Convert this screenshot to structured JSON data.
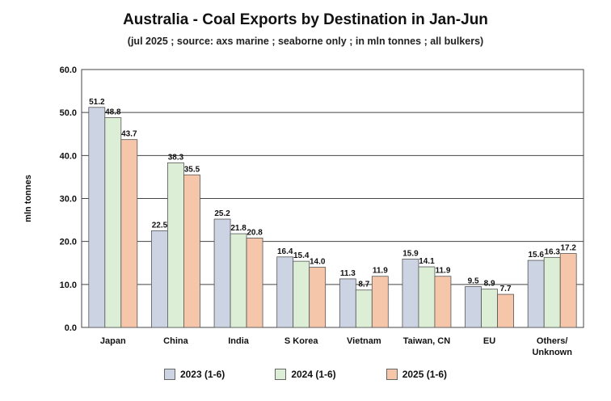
{
  "title": "Australia - Coal Exports by Destination in Jan-Jun",
  "subtitle": "(jul 2025 ; source: axs marine ; seaborne only ; in mln tonnes ; all bulkers)",
  "chart_data": {
    "type": "bar",
    "title": "Australia - Coal Exports by Destination in Jan-Jun",
    "subtitle": "(jul 2025 ; source: axs marine ; seaborne only ; in mln tonnes ; all bulkers)",
    "xlabel": "",
    "ylabel": "mln tonnes",
    "ylim": [
      0,
      60
    ],
    "yticks": [
      "0.0",
      "10.0",
      "20.0",
      "30.0",
      "40.0",
      "50.0",
      "60.0"
    ],
    "grid": true,
    "legend_position": "bottom",
    "categories": [
      "Japan",
      "China",
      "India",
      "S Korea",
      "Vietnam",
      "Taiwan, CN",
      "EU",
      "Others/\nUnknown"
    ],
    "series": [
      {
        "name": "2023 (1-6)",
        "color": "#ccd3e3",
        "values": [
          51.2,
          22.5,
          25.2,
          16.4,
          11.3,
          15.9,
          9.5,
          15.6
        ],
        "labels": [
          "51.2",
          "22.5",
          "25.2",
          "16.4",
          "11.3",
          "15.9",
          "9.5",
          "15.6"
        ]
      },
      {
        "name": "2024 (1-6)",
        "color": "#dcefd6",
        "values": [
          48.8,
          38.3,
          21.8,
          15.4,
          8.7,
          14.1,
          8.9,
          16.3
        ],
        "labels": [
          "48.8",
          "38.3",
          "21.8",
          "15.4",
          "8.7",
          "14.1",
          "8.9",
          "16.3"
        ]
      },
      {
        "name": "2025 (1-6)",
        "color": "#f6c6aa",
        "values": [
          43.7,
          35.5,
          20.8,
          14.0,
          11.9,
          11.9,
          7.7,
          17.2
        ],
        "labels": [
          "43.7",
          "35.5",
          "20.8",
          "14.0",
          "11.9",
          "11.9",
          "7.7",
          "17.2"
        ]
      }
    ]
  }
}
